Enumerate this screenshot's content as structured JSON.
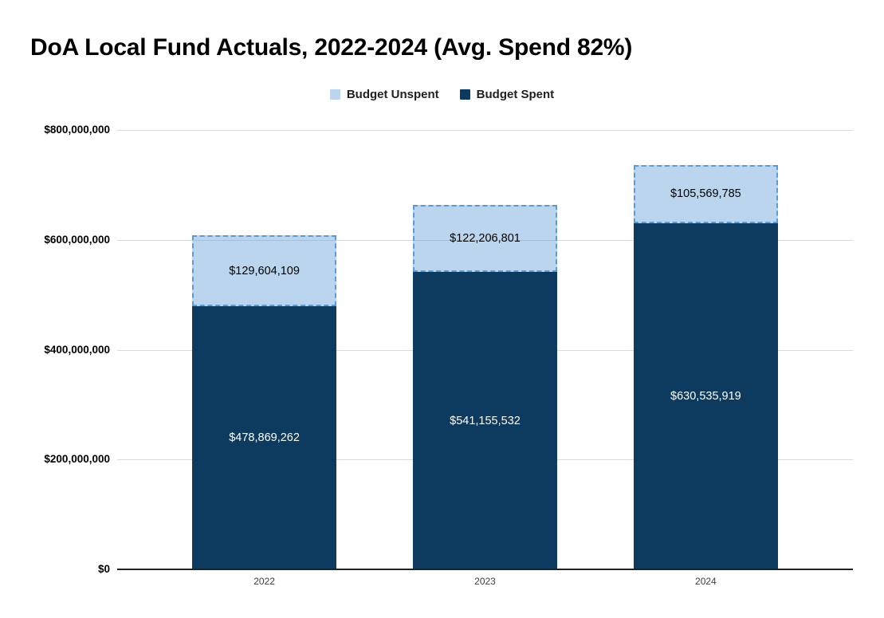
{
  "title": "DoA Local Fund Actuals, 2022-2024 (Avg. Spend 82%)",
  "legend": {
    "position": "top",
    "items": [
      {
        "label": "Budget Unspent",
        "swatch_color": "#bcd5ee"
      },
      {
        "label": "Budget Spent",
        "swatch_color": "#0d3a5f"
      }
    ]
  },
  "colors": {
    "spent_fill": "#0d3a5f",
    "unspent_fill_solid": "#bcd5ee",
    "unspent_fill_overlay": "rgba(91,155,213,0.42)",
    "unspent_border": "#5b9bd5",
    "gridline": "#d9d9d9",
    "axis_line": "#212121",
    "title_color": "#000000",
    "ytick_color": "#000000",
    "xtick_color": "#404040",
    "label_on_dark": "#ffffff",
    "label_on_light": "#000000"
  },
  "chart_data": {
    "type": "bar",
    "stacked": true,
    "title": "DoA Local Fund Actuals, 2022-2024 (Avg. Spend 82%)",
    "categories": [
      "2022",
      "2023",
      "2024"
    ],
    "series": [
      {
        "name": "Budget Unspent",
        "values": [
          129604109,
          122206801,
          105569785
        ],
        "labels": [
          "$129,604,109",
          "$122,206,801",
          "$105,569,785"
        ]
      },
      {
        "name": "Budget Spent",
        "values": [
          478869262,
          541155532,
          630535919
        ],
        "labels": [
          "$478,869,262",
          "$541,155,532",
          "$630,535,919"
        ]
      }
    ],
    "totals": [
      608473371,
      663362333,
      736105704
    ],
    "avg_spend_pct_in_title": 82,
    "xlabel": "",
    "ylabel": "",
    "ylim": [
      0,
      800000000
    ],
    "yticks": [
      {
        "value": 0,
        "label": "$0"
      },
      {
        "value": 200000000,
        "label": "$200,000,000"
      },
      {
        "value": 400000000,
        "label": "$400,000,000"
      },
      {
        "value": 600000000,
        "label": "$600,000,000"
      },
      {
        "value": 800000000,
        "label": "$800,000,000"
      }
    ],
    "grid": true,
    "legend_position": "top"
  }
}
